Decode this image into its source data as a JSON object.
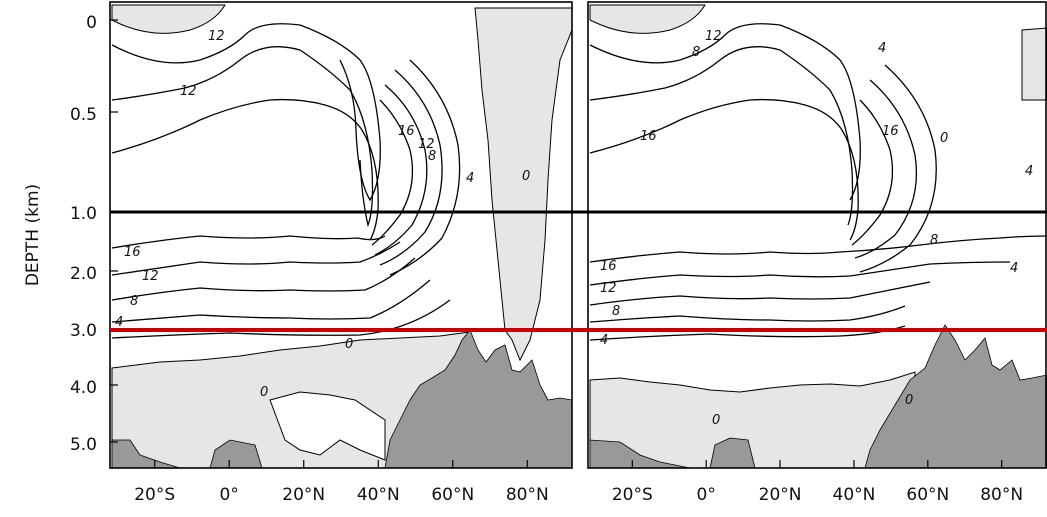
{
  "colors": {
    "background": "#ffffff",
    "land_fill": "#999999",
    "shaded_region": "#e6e6e6",
    "contour_line": "#000000",
    "reference_line": "#000000",
    "highlight_line": "#cc0000"
  },
  "chart_data": [
    {
      "type": "contour",
      "panel": "left",
      "ylabel": "DEPTH (km)",
      "x_tick_labels": [
        "20°S",
        "0°",
        "20°N",
        "40°N",
        "60°N",
        "80°N"
      ],
      "x_ticks_deg": [
        -20,
        0,
        20,
        40,
        60,
        80
      ],
      "xlim_deg": [
        -32,
        92
      ],
      "y_tick_labels": [
        "0",
        "0.5",
        "1.0",
        "2.0",
        "3.0",
        "4.0",
        "5.0"
      ],
      "y_ticks_km": [
        0,
        0.5,
        1.0,
        2.0,
        3.0,
        4.0,
        5.0
      ],
      "ylim_km": [
        0,
        5.4
      ],
      "y_scale": "stretched upper 1 km",
      "contour_labels": [
        "12",
        "12",
        "16",
        "12",
        "8",
        "4",
        "0",
        "16",
        "12",
        "8",
        "4",
        "0",
        "0"
      ],
      "reference_lines_km": [
        1.0,
        3.0
      ]
    },
    {
      "type": "contour",
      "panel": "right",
      "x_tick_labels": [
        "20°S",
        "0°",
        "20°N",
        "40°N",
        "60°N",
        "80°N"
      ],
      "x_ticks_deg": [
        -20,
        0,
        20,
        40,
        60,
        80
      ],
      "xlim_deg": [
        -32,
        92
      ],
      "ylim_km": [
        0,
        5.4
      ],
      "contour_labels": [
        "12",
        "8",
        "4",
        "16",
        "16",
        "8",
        "4",
        "0",
        "16",
        "12",
        "8",
        "4",
        "4",
        "0",
        "0"
      ],
      "reference_lines_km": [
        1.0,
        3.0
      ]
    }
  ]
}
